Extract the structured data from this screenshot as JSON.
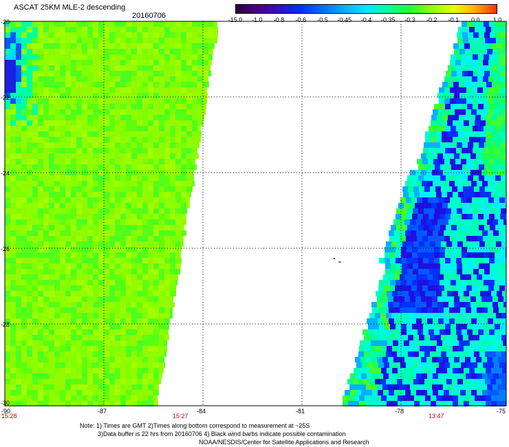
{
  "header": {
    "title": "ASCAT 25KM MLE-2 descending",
    "date": "20160706"
  },
  "colorbar": {
    "labels": [
      "-15.0",
      "-1.0",
      "-0.8",
      "-0.6",
      "-0.5",
      "-0.45",
      "-0.4",
      "-0.35",
      "-0.3",
      "-0.2",
      "-0.1",
      "0.0",
      "1.0"
    ],
    "colors": [
      "#2b003b",
      "#4b0082",
      "#3010c8",
      "#0030ff",
      "#0070ff",
      "#00b0ff",
      "#00e8ff",
      "#00ff9a",
      "#20ff30",
      "#8cff00",
      "#e8ff00",
      "#ffb000",
      "#ff3000"
    ]
  },
  "map": {
    "lat_labels": [
      "-20",
      "-22",
      "-24",
      "-26",
      "-28",
      "-30"
    ],
    "lon_labels": [
      "-90",
      "-87",
      "-84",
      "-81",
      "-78",
      "-75"
    ]
  },
  "pass_times": [
    "15:28",
    "15:27",
    "13:47"
  ],
  "notes": {
    "line1": "Note: 1) Times are GMT 2)Times along bottom correspond to measurement at ~25S",
    "line2": "3)Data buffer is 22 hrs from 20160706 4) Black wind barbs indicate possible contamination",
    "line3": "NOAA/NESDIS/Center for Satellite Applications and Research"
  }
}
